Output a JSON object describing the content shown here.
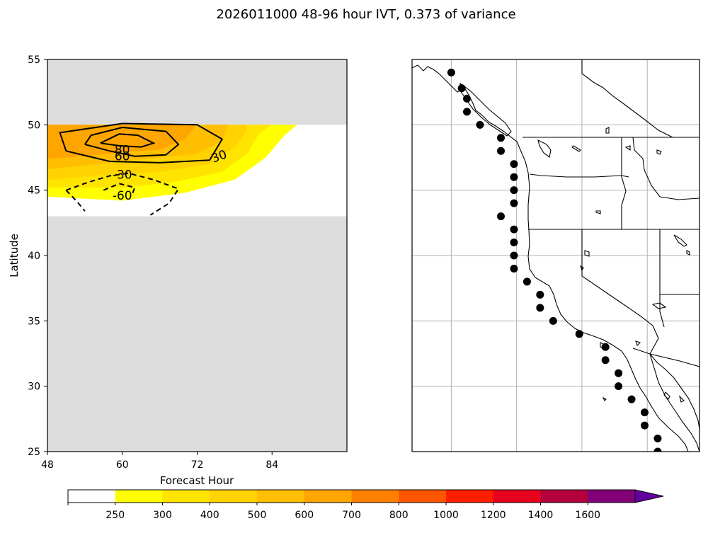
{
  "title": "2026011000 48-96 hour IVT, 0.373 of variance",
  "colors": {
    "masked": "#dcdcdc",
    "contour": "#000000",
    "station": "#000000",
    "grid": "#b0b0b0",
    "fill_levels": [
      "#ffffff",
      "#ffff00",
      "#ffe400",
      "#ffd200",
      "#ffbf00",
      "#ffa500",
      "#ff7f00",
      "#ff5500",
      "#ff1e00",
      "#e6001e",
      "#b4003c",
      "#820078",
      "#6400a0"
    ]
  },
  "chart_data": [
    {
      "type": "contour",
      "xlabel": "Forecast Hour",
      "ylabel": "Latitude",
      "xlim": [
        48,
        96
      ],
      "ylim": [
        25,
        55
      ],
      "xticks": [
        "48",
        "60",
        "72",
        "84"
      ],
      "yticks": [
        "25",
        "30",
        "35",
        "40",
        "45",
        "50",
        "55"
      ],
      "masked_regions": [
        {
          "lat_range": [
            50,
            55
          ]
        },
        {
          "lat_range": [
            25,
            43
          ]
        }
      ],
      "filled_bands": [
        {
          "level": 250,
          "polygon": [
            [
              48,
              44.5
            ],
            [
              60,
              44.2
            ],
            [
              70,
              44.8
            ],
            [
              78,
              45.8
            ],
            [
              83,
              47.5
            ],
            [
              86,
              49.2
            ],
            [
              88,
              50
            ],
            [
              48,
              50
            ]
          ]
        },
        {
          "level": 300,
          "polygon": [
            [
              48,
              45.2
            ],
            [
              60,
              45.2
            ],
            [
              68,
              45.6
            ],
            [
              76,
              46.4
            ],
            [
              80,
              47.8
            ],
            [
              82,
              49.4
            ],
            [
              84,
              50
            ],
            [
              48,
              50
            ]
          ]
        },
        {
          "level": 400,
          "polygon": [
            [
              48,
              45.8
            ],
            [
              58,
              46.2
            ],
            [
              66,
              46.4
            ],
            [
              74,
              47.0
            ],
            [
              78,
              48.3
            ],
            [
              80,
              49.6
            ],
            [
              80,
              50
            ],
            [
              48,
              50
            ]
          ]
        },
        {
          "level": 500,
          "polygon": [
            [
              48,
              46.6
            ],
            [
              56,
              47.0
            ],
            [
              64,
              47.4
            ],
            [
              72,
              47.8
            ],
            [
              76,
              48.8
            ],
            [
              77,
              50
            ],
            [
              48,
              50
            ]
          ]
        },
        {
          "level": 600,
          "polygon": [
            [
              48,
              47.4
            ],
            [
              54,
              47.6
            ],
            [
              60,
              47.9
            ],
            [
              66,
              48.1
            ],
            [
              70,
              48.9
            ],
            [
              72,
              50
            ],
            [
              48,
              50
            ]
          ]
        }
      ],
      "contours": [
        {
          "level": 30,
          "style": "solid",
          "path": [
            [
              51,
              48
            ],
            [
              58,
              47.2
            ],
            [
              66,
              47.1
            ],
            [
              74,
              47.3
            ],
            [
              76,
              48.9
            ],
            [
              72,
              50
            ],
            [
              60,
              50.1
            ],
            [
              50,
              49.4
            ],
            [
              51,
              48
            ]
          ],
          "label": "30",
          "label_at": [
            75.5,
            47.6
          ],
          "label_rot": -20
        },
        {
          "level": 60,
          "style": "solid",
          "path": [
            [
              54,
              48.5
            ],
            [
              58,
              48
            ],
            [
              62,
              47.6
            ],
            [
              67,
              47.7
            ],
            [
              69,
              48.5
            ],
            [
              67,
              49.5
            ],
            [
              60,
              49.8
            ],
            [
              55,
              49.2
            ],
            [
              54,
              48.5
            ]
          ],
          "label": "60",
          "label_at": [
            60,
            47.6
          ],
          "label_rot": 0
        },
        {
          "level": 80,
          "style": "solid",
          "path": [
            [
              56.5,
              48.6
            ],
            [
              59.5,
              48.4
            ],
            [
              63,
              48.3
            ],
            [
              65,
              48.6
            ],
            [
              62.5,
              49.2
            ],
            [
              59.5,
              49.3
            ],
            [
              56.5,
              48.6
            ]
          ],
          "label": "80",
          "label_at": [
            60,
            48.1
          ],
          "label_rot": 0
        },
        {
          "level": -30,
          "style": "dashed",
          "path": [
            [
              51,
              45
            ],
            [
              54.5,
              45.6
            ],
            [
              58,
              46.1
            ],
            [
              61,
              46.3
            ],
            [
              65,
              45.8
            ],
            [
              69,
              45.1
            ],
            [
              67.5,
              44.0
            ],
            [
              64.5,
              43.1
            ]
          ],
          "label": "-30",
          "label_at": [
            60,
            46.2
          ],
          "label_rot": 0
        },
        {
          "level": -30,
          "style": "dashed",
          "path": [
            [
              51,
              45
            ],
            [
              52.8,
              44.1
            ],
            [
              54,
              43.4
            ]
          ],
          "label": "",
          "label_at": null,
          "label_rot": 0
        },
        {
          "level": -60,
          "style": "dashed",
          "path": [
            [
              57,
              45.0
            ],
            [
              59.5,
              45.5
            ],
            [
              62,
              45.2
            ],
            [
              61.5,
              44.6
            ]
          ],
          "label": "-60",
          "label_at": [
            60,
            44.6
          ],
          "label_rot": 0
        }
      ]
    },
    {
      "type": "map",
      "projection": "cylindrical",
      "lon_range": [
        -130,
        -108
      ],
      "lat_range": [
        25,
        55
      ],
      "gridlines_lon": [
        -127,
        -122,
        -117,
        -112
      ],
      "gridlines_lat": [
        30,
        35,
        40,
        45,
        50
      ],
      "stations": [
        [
          -127,
          54
        ],
        [
          -126.2,
          52.8
        ],
        [
          -125.8,
          52
        ],
        [
          -125.8,
          51
        ],
        [
          -124.8,
          50
        ],
        [
          -123.2,
          49
        ],
        [
          -123.2,
          48
        ],
        [
          -122.2,
          47
        ],
        [
          -122.2,
          46
        ],
        [
          -122.2,
          45
        ],
        [
          -122.2,
          44
        ],
        [
          -123.2,
          43
        ],
        [
          -122.2,
          42
        ],
        [
          -122.2,
          41
        ],
        [
          -122.2,
          40
        ],
        [
          -122.2,
          39
        ],
        [
          -121.2,
          38
        ],
        [
          -120.2,
          37
        ],
        [
          -120.2,
          36
        ],
        [
          -119.2,
          35
        ],
        [
          -117.2,
          34
        ],
        [
          -115.2,
          33
        ],
        [
          -115.2,
          32
        ],
        [
          -114.2,
          31
        ],
        [
          -114.2,
          30
        ],
        [
          -113.2,
          29
        ],
        [
          -112.2,
          28
        ],
        [
          -112.2,
          27
        ],
        [
          -111.2,
          26
        ],
        [
          -111.2,
          25
        ]
      ]
    }
  ],
  "colorbar": {
    "levels": [
      "250",
      "300",
      "400",
      "500",
      "600",
      "700",
      "800",
      "1000",
      "1200",
      "1400",
      "1600"
    ],
    "extend": "max"
  }
}
